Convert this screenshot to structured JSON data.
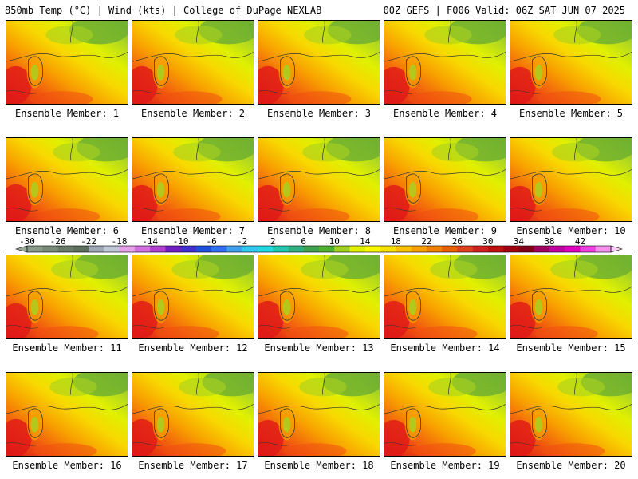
{
  "header": {
    "title_left": "850mb Temp (°C) | Wind (kts) | College of DuPage NEXLAB",
    "title_right": "00Z GEFS | F006 Valid: 06Z SAT JUN 07 2025"
  },
  "members": [
    {
      "label": "Ensemble Member: 1"
    },
    {
      "label": "Ensemble Member: 2"
    },
    {
      "label": "Ensemble Member: 3"
    },
    {
      "label": "Ensemble Member: 4"
    },
    {
      "label": "Ensemble Member: 5"
    },
    {
      "label": "Ensemble Member: 6"
    },
    {
      "label": "Ensemble Member: 7"
    },
    {
      "label": "Ensemble Member: 8"
    },
    {
      "label": "Ensemble Member: 9"
    },
    {
      "label": "Ensemble Member: 10"
    },
    {
      "label": "Ensemble Member: 11"
    },
    {
      "label": "Ensemble Member: 12"
    },
    {
      "label": "Ensemble Member: 13"
    },
    {
      "label": "Ensemble Member: 14"
    },
    {
      "label": "Ensemble Member: 15"
    },
    {
      "label": "Ensemble Member: 16"
    },
    {
      "label": "Ensemble Member: 17"
    },
    {
      "label": "Ensemble Member: 18"
    },
    {
      "label": "Ensemble Member: 19"
    },
    {
      "label": "Ensemble Member: 20"
    }
  ],
  "colorbar": {
    "ticks": [
      "-30",
      "-26",
      "-22",
      "-18",
      "-14",
      "-10",
      "-6",
      "-2",
      "2",
      "6",
      "10",
      "14",
      "18",
      "22",
      "26",
      "30",
      "34",
      "38",
      "42"
    ],
    "colors": [
      "#8a9a8a",
      "#7a8a7a",
      "#6a7a6a",
      "#5f6f5f",
      "#a0a8b8",
      "#c0c8d8",
      "#e8a0e8",
      "#d070e0",
      "#b040d0",
      "#7020c0",
      "#4030d0",
      "#2050e0",
      "#3070f0",
      "#40a0f0",
      "#30c8f0",
      "#20d8e0",
      "#20c8b0",
      "#30b080",
      "#40a050",
      "#50b030",
      "#a0d020",
      "#e0f000",
      "#f8f800",
      "#f8e000",
      "#f8c000",
      "#f8a000",
      "#f08000",
      "#e86000",
      "#e04020",
      "#d02020",
      "#c01010",
      "#a00010",
      "#800018",
      "#a00060",
      "#c000a0",
      "#e000c0",
      "#f040e0",
      "#f890f0"
    ]
  }
}
